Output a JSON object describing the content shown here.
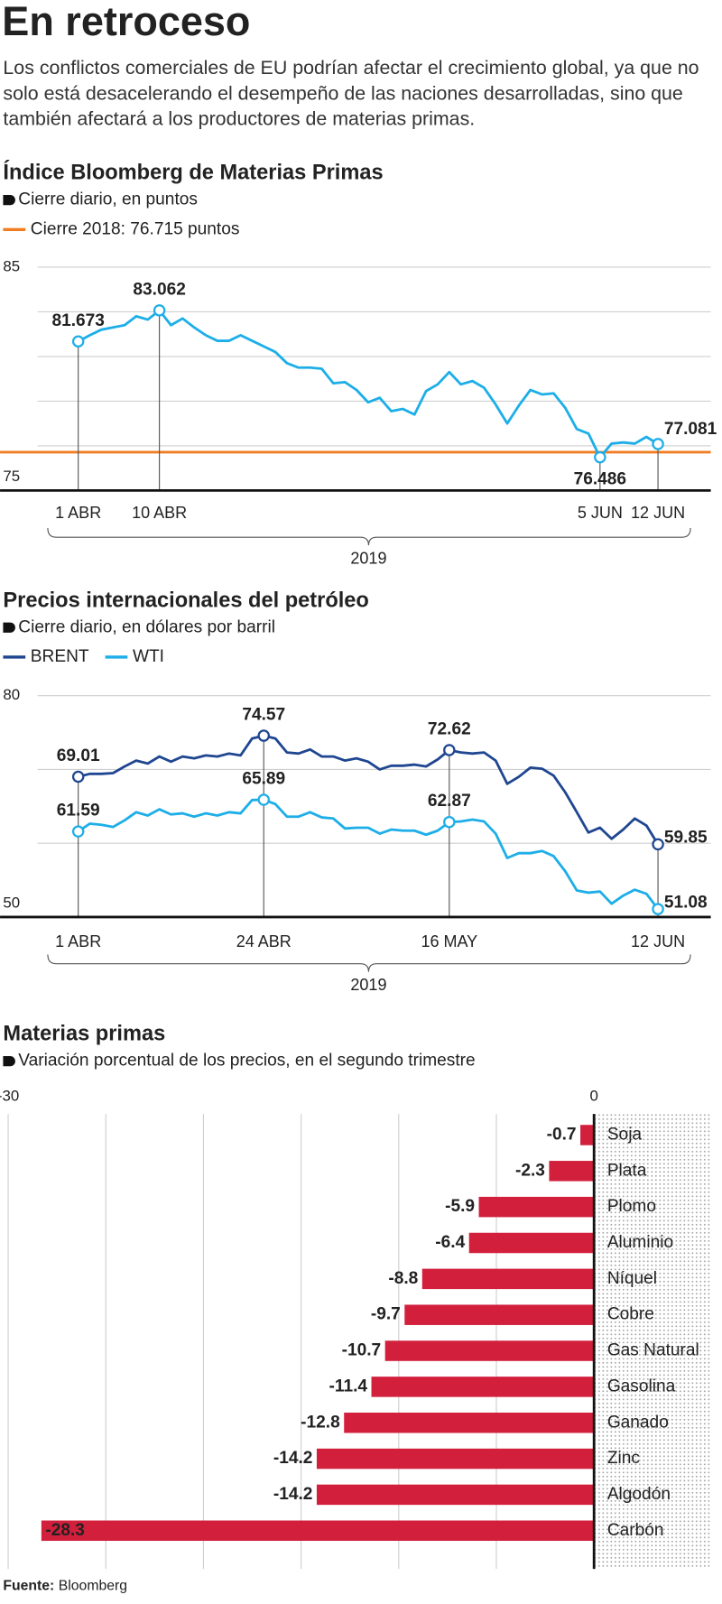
{
  "header": {
    "title": "En retroceso",
    "subtitle": "Los conflictos comerciales de EU podrían afectar el crecimiento global, ya que no solo está desacelerando el desempeño de las naciones desarrolladas, sino que también afectará a los productores de materias primas."
  },
  "chart_data": [
    {
      "type": "line",
      "title": "Índice Bloomberg de Materias Primas",
      "subtitle": "Cierre diario, en puntos",
      "reference": {
        "label": "Cierre 2018: 76.715 puntos",
        "value": 76.715,
        "color": "#f07d22"
      },
      "categories": [
        "1 ABR",
        null,
        null,
        null,
        null,
        null,
        null,
        "10 ABR",
        null,
        null,
        null,
        null,
        null,
        null,
        null,
        null,
        null,
        null,
        null,
        null,
        null,
        null,
        null,
        null,
        null,
        null,
        null,
        null,
        null,
        null,
        null,
        null,
        null,
        null,
        null,
        null,
        null,
        null,
        null,
        null,
        null,
        null,
        null,
        null,
        null,
        "5 JUN",
        null,
        null,
        null,
        null,
        "12 JUN"
      ],
      "values": [
        81.673,
        81.95,
        82.2,
        82.3,
        82.4,
        82.8,
        82.65,
        83.062,
        82.4,
        82.7,
        82.3,
        81.95,
        81.7,
        81.7,
        81.95,
        81.7,
        81.45,
        81.2,
        80.7,
        80.5,
        80.5,
        80.45,
        79.8,
        79.85,
        79.5,
        78.95,
        79.15,
        78.55,
        78.65,
        78.4,
        79.45,
        79.75,
        80.3,
        79.75,
        79.9,
        79.6,
        78.85,
        78.0,
        78.8,
        79.5,
        79.3,
        79.35,
        78.7,
        77.75,
        77.55,
        76.486,
        77.1,
        77.15,
        77.1,
        77.4,
        77.081
      ],
      "color": "#1daee8",
      "ylim": [
        75,
        85
      ],
      "yticks": [
        75,
        85
      ],
      "gridlines": [
        77,
        79,
        81,
        83
      ],
      "x_label": "2019"
    },
    {
      "type": "line",
      "title": "Precios internacionales del petróleo",
      "subtitle": "Cierre diario, en dólares por barril",
      "categories": [
        "1 ABR",
        null,
        null,
        null,
        null,
        null,
        null,
        null,
        null,
        null,
        null,
        null,
        null,
        null,
        null,
        null,
        "24 ABR",
        null,
        null,
        null,
        null,
        null,
        null,
        null,
        null,
        null,
        null,
        null,
        null,
        null,
        null,
        null,
        "16 MAY",
        null,
        null,
        null,
        null,
        null,
        null,
        null,
        null,
        null,
        null,
        null,
        null,
        null,
        null,
        null,
        null,
        null,
        "12 JUN"
      ],
      "series": [
        {
          "name": "BRENT",
          "color": "#1f4690",
          "values": [
            69.01,
            69.4,
            69.4,
            69.5,
            70.4,
            71.2,
            70.8,
            71.75,
            71.05,
            71.75,
            71.5,
            71.9,
            71.75,
            72.15,
            71.9,
            74.2,
            74.57,
            74.2,
            72.3,
            72.15,
            72.7,
            71.75,
            71.75,
            71.2,
            71.5,
            71.05,
            70.0,
            70.5,
            70.5,
            70.65,
            70.4,
            71.35,
            72.62,
            72.3,
            72.15,
            72.3,
            71.2,
            68.05,
            69.0,
            70.25,
            70.1,
            69.15,
            66.9,
            64.2,
            61.45,
            62.1,
            60.6,
            61.85,
            63.35,
            62.4,
            59.85
          ]
        },
        {
          "name": "WTI",
          "color": "#1daee8",
          "values": [
            61.59,
            62.65,
            62.5,
            62.2,
            63.1,
            64.2,
            63.75,
            64.6,
            63.9,
            64.05,
            63.6,
            64.05,
            63.75,
            64.2,
            64.05,
            65.85,
            65.89,
            65.3,
            63.6,
            63.6,
            64.2,
            63.5,
            63.35,
            62.0,
            62.1,
            62.1,
            61.3,
            61.85,
            61.7,
            61.7,
            61.15,
            61.7,
            62.87,
            62.95,
            63.2,
            62.95,
            61.3,
            58.0,
            58.65,
            58.65,
            58.95,
            58.25,
            56.2,
            53.6,
            53.3,
            53.45,
            51.8,
            52.9,
            53.7,
            53.15,
            51.08
          ]
        }
      ],
      "ylim": [
        50,
        80
      ],
      "yticks": [
        50,
        80
      ],
      "gridlines": [
        60,
        70
      ],
      "x_label": "2019"
    },
    {
      "type": "bar",
      "orientation": "horizontal",
      "title": "Materias primas",
      "subtitle": "Variación porcentual de los precios, en el segundo trimestre",
      "categories": [
        "Soja",
        "Plata",
        "Plomo",
        "Aluminio",
        "Níquel",
        "Cobre",
        "Gas Natural",
        "Gasolina",
        "Ganado",
        "Zinc",
        "Algodón",
        "Carbón"
      ],
      "values": [
        -0.7,
        -2.3,
        -5.9,
        -6.4,
        -8.8,
        -9.7,
        -10.7,
        -11.4,
        -12.8,
        -14.2,
        -14.2,
        -28.3
      ],
      "color": "#d21f3c",
      "xlim": [
        -30,
        0
      ],
      "xticks": [
        -30,
        0
      ],
      "gridlines": [
        -25,
        -20,
        -15,
        -10,
        -5
      ]
    }
  ],
  "footer": {
    "label": "Fuente:",
    "source": "Bloomberg"
  }
}
